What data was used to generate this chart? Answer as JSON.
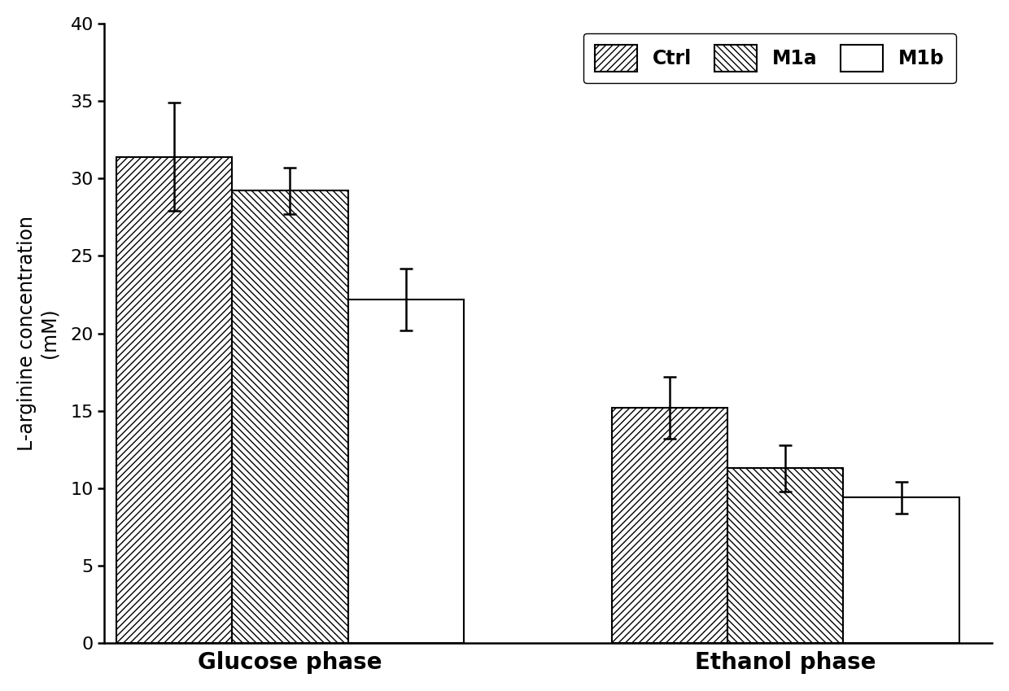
{
  "groups": [
    "Glucose phase",
    "Ethanol phase"
  ],
  "series": [
    "Ctrl",
    "M1a",
    "M1b"
  ],
  "values": {
    "Glucose phase": [
      31.4,
      29.2,
      22.2
    ],
    "Ethanol phase": [
      15.2,
      11.3,
      9.4
    ]
  },
  "errors": {
    "Glucose phase": [
      3.5,
      1.5,
      2.0
    ],
    "Ethanol phase": [
      2.0,
      1.5,
      1.0
    ]
  },
  "hatches": [
    "////",
    "\\\\\\\\",
    "~~~~"
  ],
  "bar_facecolor": "#ffffff",
  "bar_edgecolor": "#000000",
  "ylabel": "L-arginine concentration\n(mM)",
  "ylim": [
    0,
    40
  ],
  "yticks": [
    0,
    5,
    10,
    15,
    20,
    25,
    30,
    35,
    40
  ],
  "group_label_fontsize": 20,
  "ylabel_fontsize": 17,
  "legend_fontsize": 17,
  "tick_fontsize": 16,
  "bar_width": 0.28,
  "background_color": "#ffffff",
  "legend_labels": [
    "Ctrl",
    "M1a",
    "M1b"
  ],
  "group_positions": [
    0.5,
    1.7
  ]
}
